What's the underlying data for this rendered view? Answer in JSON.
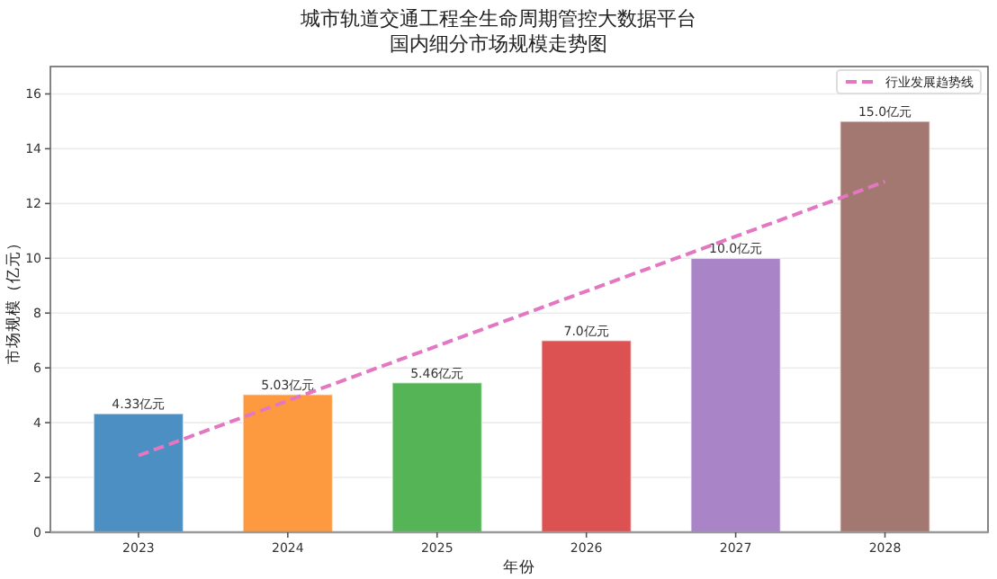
{
  "chart_data": {
    "type": "bar",
    "title": "城市轨道交通工程全生命周期管控大数据平台",
    "subtitle": "国内细分市场规模走势图",
    "xlabel": "年份",
    "ylabel": "市场规模（亿元）",
    "categories": [
      "2023",
      "2024",
      "2025",
      "2026",
      "2027",
      "2028"
    ],
    "series": [
      {
        "values": [
          4.33,
          5.03,
          5.46,
          7.0,
          10.0,
          15.0
        ],
        "colors": [
          "#4c8fc2",
          "#fd9a40",
          "#55b456",
          "#dc5252",
          "#a985c8",
          "#a27870"
        ],
        "value_labels": [
          "4.33亿元",
          "5.03亿元",
          "5.46亿元",
          "7.0亿元",
          "10.0亿元",
          "15.0亿元"
        ]
      },
      {
        "type": "line",
        "name": "行业发展趋势线",
        "color": "#e377c2",
        "line_style": "dashed",
        "values": [
          2.8,
          4.8,
          6.8,
          8.8,
          10.8,
          12.8
        ]
      }
    ],
    "ylim": [
      0,
      17
    ],
    "yticks": [
      0,
      2,
      4,
      6,
      8,
      10,
      12,
      14,
      16
    ],
    "grid": "y",
    "legend": "top right"
  }
}
